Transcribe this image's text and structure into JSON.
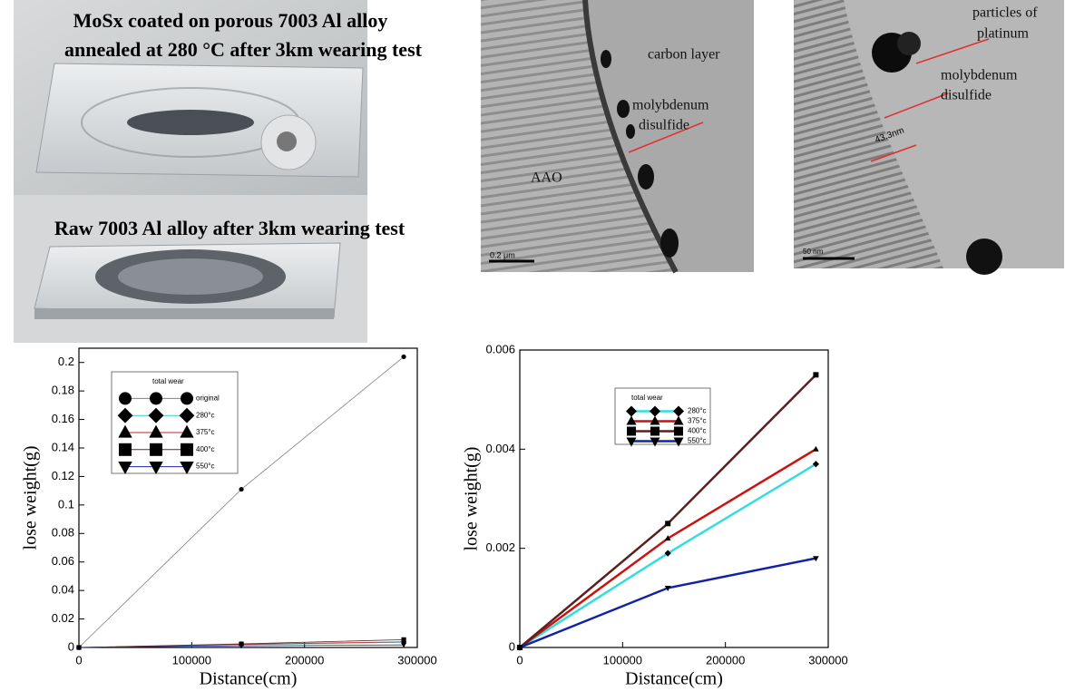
{
  "panels": [
    {
      "caption": [
        "MoSx coated on porous 7003 Al alloy",
        "annealed at 280 °C after 3km wearing test"
      ]
    },
    {
      "caption": [
        "Raw 7003 Al alloy after 3km wearing test"
      ]
    },
    {
      "labels": [
        "carbon layer",
        "molybdenum",
        "disulfide",
        "AAO"
      ],
      "scale_bar": "0.2 μm"
    },
    {
      "labels": [
        "particles of",
        "platinum",
        "molybdenum",
        "disulfide",
        "43.3nm"
      ],
      "scale_bar": "50 nm"
    }
  ],
  "chart_data": [
    {
      "type": "line",
      "x_label": "Distance(cm)",
      "y_label": "lose weight(g)",
      "legend_title": "total wear",
      "legend": "top-left",
      "x": [
        0,
        144000,
        288000
      ],
      "xlim": [
        0,
        300000
      ],
      "xticks": [
        0,
        100000,
        200000,
        300000
      ],
      "ylim": [
        0,
        0.21
      ],
      "yticks": [
        0,
        0.02,
        0.04,
        0.06,
        0.08,
        0.1,
        0.12,
        0.14,
        0.16,
        0.18,
        0.2
      ],
      "series": [
        {
          "name": "original",
          "color": "#808080",
          "marker": "circle",
          "values": [
            0,
            0.111,
            0.204
          ]
        },
        {
          "name": "280°c",
          "color": "#33cccc",
          "marker": "diamond",
          "values": [
            0,
            0.0019,
            0.0037
          ]
        },
        {
          "name": "375°c",
          "color": "#cc2222",
          "marker": "triangle",
          "values": [
            0,
            0.0022,
            0.004
          ]
        },
        {
          "name": "400°c",
          "color": "#5a2a2a",
          "marker": "square",
          "values": [
            0,
            0.0025,
            0.0055
          ]
        },
        {
          "name": "550°c",
          "color": "#1a2aaa",
          "marker": "triangle-down",
          "values": [
            0,
            0.0012,
            0.0018
          ]
        }
      ]
    },
    {
      "type": "line",
      "x_label": "Distance(cm)",
      "y_label": "lose weight(g)",
      "legend_title": "total wear",
      "legend": "top-center",
      "x": [
        0,
        144000,
        288000
      ],
      "xlim": [
        0,
        300000
      ],
      "xticks": [
        0,
        100000,
        200000,
        300000
      ],
      "ylim": [
        0,
        0.006
      ],
      "yticks": [
        0,
        0.002,
        0.004,
        0.006
      ],
      "series": [
        {
          "name": "280°c",
          "color": "#33dddd",
          "marker": "diamond",
          "values": [
            0,
            0.0019,
            0.0037
          ]
        },
        {
          "name": "375°c",
          "color": "#cc1111",
          "marker": "triangle",
          "values": [
            0,
            0.0022,
            0.004
          ]
        },
        {
          "name": "400°c",
          "color": "#5a2020",
          "marker": "square",
          "values": [
            0,
            0.0025,
            0.0055
          ]
        },
        {
          "name": "550°c",
          "color": "#1122aa",
          "marker": "triangle-down",
          "values": [
            0,
            0.0012,
            0.0018
          ]
        }
      ]
    }
  ]
}
